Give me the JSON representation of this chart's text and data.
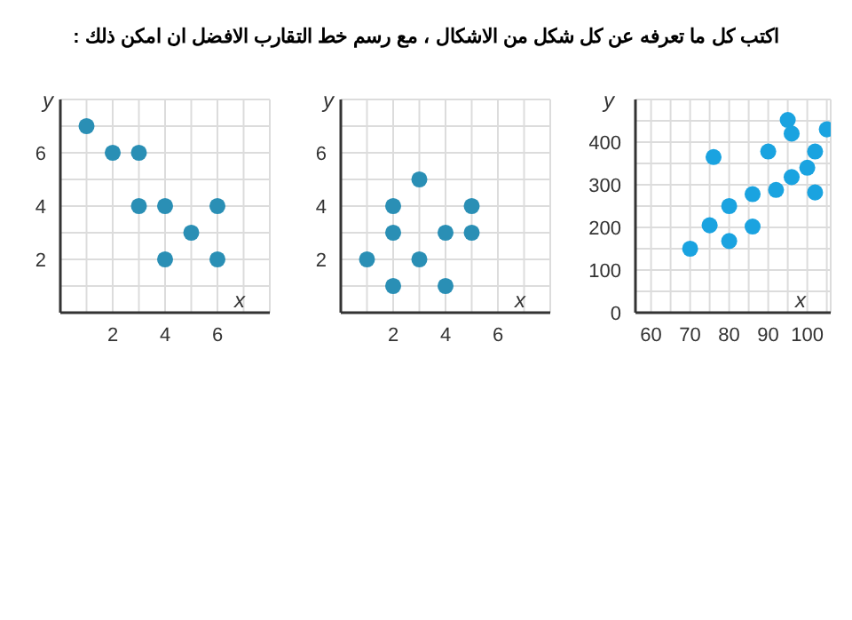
{
  "chart_data": [
    {
      "type": "scatter",
      "title": "اكتب كل ما تعرفه عن كل شكل من الاشكال ، مع رسم خط التقارب الافضل ان امكن ذلك :",
      "xlabel": "x",
      "ylabel": "y",
      "marker": "circle",
      "grid": true,
      "xlim": [
        0,
        8
      ],
      "ylim": [
        0,
        8
      ],
      "xticks": [
        {
          "value": 1,
          "label": null
        },
        2,
        {
          "value": 3,
          "label": null
        },
        4,
        {
          "value": 5,
          "label": null
        },
        6,
        {
          "value": 7,
          "label": null
        }
      ],
      "yticks": [
        {
          "value": 1,
          "label": null
        },
        2,
        {
          "value": 3,
          "label": null
        },
        4,
        {
          "value": 5,
          "label": null
        },
        6,
        {
          "value": 7,
          "label": null
        }
      ],
      "series": [
        {
          "color": "#2a8fb5",
          "x": [
            1,
            2,
            3,
            3,
            4,
            6,
            5,
            4,
            6
          ],
          "values": [
            7,
            6,
            6,
            4,
            4,
            4,
            3,
            2,
            2
          ]
        }
      ]
    },
    {
      "type": "scatter",
      "xlabel": "x",
      "ylabel": "y",
      "marker": "circle",
      "grid": true,
      "xlim": [
        0,
        8
      ],
      "ylim": [
        0,
        8
      ],
      "xticks": [
        {
          "value": 1,
          "label": null
        },
        2,
        {
          "value": 3,
          "label": null
        },
        4,
        {
          "value": 5,
          "label": null
        },
        6,
        {
          "value": 7,
          "label": null
        }
      ],
      "yticks": [
        {
          "value": 1,
          "label": null
        },
        2,
        {
          "value": 3,
          "label": null
        },
        4,
        {
          "value": 5,
          "label": null
        },
        6,
        {
          "value": 7,
          "label": null
        }
      ],
      "series": [
        {
          "color": "#2a8fb5",
          "x": [
            1,
            2,
            2,
            2,
            3,
            3,
            4,
            4,
            5,
            5
          ],
          "values": [
            2,
            1,
            3,
            4,
            5,
            2,
            3,
            1,
            4,
            3
          ]
        }
      ]
    },
    {
      "type": "scatter",
      "xlabel": "x",
      "ylabel": "y",
      "marker": "circle",
      "grid": true,
      "xlim": [
        56,
        106
      ],
      "ylim": [
        0,
        500
      ],
      "xticks": [
        60,
        {
          "value": 65,
          "label": null
        },
        70,
        {
          "value": 75,
          "label": null
        },
        80,
        {
          "value": 85,
          "label": null
        },
        90,
        {
          "value": 95,
          "label": null
        },
        100,
        {
          "value": 105,
          "label": null
        }
      ],
      "yticks": [
        0,
        {
          "value": 50,
          "label": null
        },
        100,
        {
          "value": 150,
          "label": null
        },
        200,
        {
          "value": 250,
          "label": null
        },
        300,
        {
          "value": 350,
          "label": null
        },
        400,
        {
          "value": 450,
          "label": null
        }
      ],
      "series": [
        {
          "color": "#1aa3e0",
          "x": [
            70,
            75,
            76,
            80,
            80,
            86,
            86,
            90,
            92,
            95,
            96,
            96,
            100,
            102,
            102,
            105
          ],
          "values": [
            150,
            205,
            365,
            250,
            168,
            278,
            202,
            378,
            288,
            452,
            420,
            318,
            340,
            378,
            282,
            430
          ]
        }
      ]
    }
  ]
}
